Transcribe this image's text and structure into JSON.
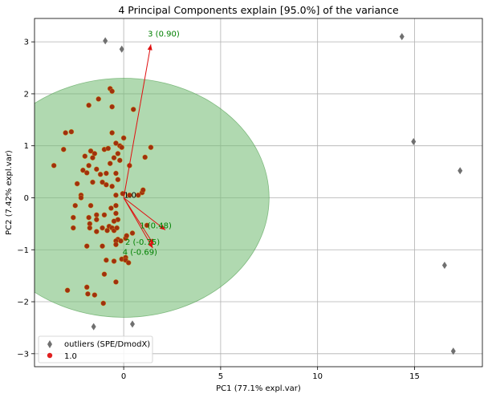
{
  "chart_data": {
    "type": "scatter",
    "title": "4 Principal Components explain [95.0%] of the variance",
    "xlabel": "PC1 (77.1% expl.var)",
    "ylabel": "PC2 (7.42% expl.var)",
    "xlim": [
      -4.6,
      18.5
    ],
    "ylim": [
      -3.25,
      3.45
    ],
    "xticks": [
      0,
      5,
      10,
      15
    ],
    "yticks": [
      -3,
      -2,
      -1,
      0,
      1,
      2,
      3
    ],
    "grid": true,
    "legend_position": "bottom-left",
    "colors": {
      "ellipse": "#7cbf7c",
      "ellipse_edge": "#2e8b2e",
      "points": "#a0300e",
      "point_edge": "#d8a020",
      "outliers": "#707070",
      "arrows": "#e01010",
      "arrow_labels": "#008000",
      "legend_dot": "#e02020"
    },
    "ellipse": {
      "center": [
        0,
        0
      ],
      "width": 15.0,
      "height": 4.6
    },
    "center_label": "1.0",
    "arrows": [
      {
        "label": "3 (0.90)",
        "x": 1.4,
        "y": 2.95
      },
      {
        "label": "1 (0.48)",
        "x": 2.15,
        "y": -0.62
      },
      {
        "label": "2 (-0.75)",
        "x": 1.55,
        "y": -0.9
      },
      {
        "label": "4 (-0.69)",
        "x": 1.5,
        "y": -0.97
      }
    ],
    "series": [
      {
        "name": "1.0",
        "points": [
          [
            -0.7,
            2.1
          ],
          [
            -0.6,
            2.05
          ],
          [
            -1.3,
            1.9
          ],
          [
            0.5,
            1.7
          ],
          [
            -0.6,
            1.75
          ],
          [
            -1.8,
            1.78
          ],
          [
            -3.0,
            1.25
          ],
          [
            -2.7,
            1.27
          ],
          [
            -3.1,
            0.93
          ],
          [
            -3.6,
            0.62
          ],
          [
            0.0,
            1.15
          ],
          [
            -0.6,
            1.25
          ],
          [
            -0.4,
            1.05
          ],
          [
            -0.2,
            1.0
          ],
          [
            -0.1,
            0.97
          ],
          [
            1.4,
            0.97
          ],
          [
            -1.0,
            0.93
          ],
          [
            -0.8,
            0.95
          ],
          [
            -1.7,
            0.9
          ],
          [
            -1.5,
            0.85
          ],
          [
            -2.0,
            0.8
          ],
          [
            -1.6,
            0.77
          ],
          [
            -0.3,
            0.85
          ],
          [
            -0.5,
            0.77
          ],
          [
            -0.2,
            0.72
          ],
          [
            -0.7,
            0.66
          ],
          [
            -1.8,
            0.62
          ],
          [
            -2.1,
            0.53
          ],
          [
            -1.4,
            0.55
          ],
          [
            -1.9,
            0.48
          ],
          [
            -1.2,
            0.45
          ],
          [
            -0.9,
            0.47
          ],
          [
            -0.4,
            0.47
          ],
          [
            0.3,
            0.62
          ],
          [
            -0.3,
            0.35
          ],
          [
            1.1,
            0.78
          ],
          [
            -0.9,
            0.25
          ],
          [
            -1.1,
            0.3
          ],
          [
            -1.6,
            0.3
          ],
          [
            -2.4,
            0.27
          ],
          [
            -2.2,
            0.05
          ],
          [
            -2.2,
            0.0
          ],
          [
            -0.6,
            0.22
          ],
          [
            -0.4,
            0.05
          ],
          [
            -0.05,
            0.08
          ],
          [
            0.3,
            0.05
          ],
          [
            0.75,
            0.05
          ],
          [
            0.95,
            0.1
          ],
          [
            1.0,
            0.15
          ],
          [
            -1.7,
            -0.15
          ],
          [
            -2.5,
            -0.15
          ],
          [
            -2.6,
            -0.38
          ],
          [
            -1.8,
            -0.38
          ],
          [
            -1.4,
            -0.33
          ],
          [
            -1.4,
            -0.42
          ],
          [
            -1.0,
            -0.33
          ],
          [
            -0.65,
            -0.2
          ],
          [
            -0.4,
            -0.15
          ],
          [
            -0.4,
            -0.3
          ],
          [
            -0.3,
            -0.42
          ],
          [
            -0.5,
            -0.45
          ],
          [
            -1.75,
            -0.5
          ],
          [
            -1.75,
            -0.58
          ],
          [
            -2.6,
            -0.58
          ],
          [
            -1.4,
            -0.65
          ],
          [
            -1.1,
            -0.58
          ],
          [
            -0.75,
            -0.55
          ],
          [
            -0.85,
            -0.63
          ],
          [
            -0.6,
            -0.58
          ],
          [
            -0.5,
            -0.63
          ],
          [
            -0.35,
            -0.58
          ],
          [
            -0.3,
            -0.8
          ],
          [
            -0.15,
            -0.83
          ],
          [
            -0.4,
            -0.83
          ],
          [
            -0.4,
            -0.9
          ],
          [
            0.1,
            -0.78
          ],
          [
            0.15,
            -0.73
          ],
          [
            0.45,
            -0.68
          ],
          [
            1.2,
            -0.53
          ],
          [
            -1.9,
            -0.93
          ],
          [
            -1.1,
            -0.93
          ],
          [
            -0.9,
            -1.2
          ],
          [
            -0.5,
            -1.22
          ],
          [
            -0.1,
            -1.18
          ],
          [
            0.1,
            -1.15
          ],
          [
            0.1,
            -1.2
          ],
          [
            0.25,
            -1.25
          ],
          [
            -1.0,
            -1.47
          ],
          [
            -0.4,
            -1.62
          ],
          [
            -1.9,
            -1.72
          ],
          [
            -2.9,
            -1.78
          ],
          [
            -1.5,
            -1.87
          ],
          [
            -1.85,
            -1.85
          ],
          [
            -1.05,
            -2.03
          ]
        ]
      },
      {
        "name": "outliers (SPE/DmodX)",
        "points": [
          [
            -0.95,
            3.02
          ],
          [
            -0.1,
            2.86
          ],
          [
            14.35,
            3.1
          ],
          [
            14.95,
            1.08
          ],
          [
            17.35,
            0.52
          ],
          [
            16.55,
            -1.3
          ],
          [
            17.0,
            -2.95
          ],
          [
            -1.55,
            -2.48
          ],
          [
            0.45,
            -2.43
          ]
        ]
      }
    ]
  }
}
